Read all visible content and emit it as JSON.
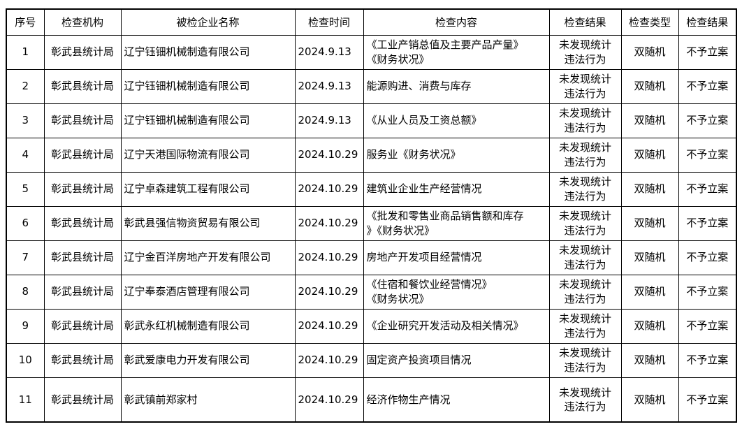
{
  "table": {
    "columns": [
      {
        "label": "序号"
      },
      {
        "label": "检查机构"
      },
      {
        "label": "被检企业名称"
      },
      {
        "label": "检查时间"
      },
      {
        "label": "检查内容"
      },
      {
        "label": "检查结果"
      },
      {
        "label": "检查类型"
      },
      {
        "label": "检查结果"
      }
    ],
    "rows": [
      [
        "1",
        "彰武县统计局",
        "辽宁钰钿机械制造有限公司",
        "2024.9.13",
        "《工业产销总值及主要产品产量》\n《财务状况》",
        "未发现统计\n违法行为",
        "双随机",
        "不予立案"
      ],
      [
        "2",
        "彰武县统计局",
        "辽宁钰钿机械制造有限公司",
        "2024.9.13",
        "能源购进、消费与库存",
        "未发现统计\n违法行为",
        "双随机",
        "不予立案"
      ],
      [
        "3",
        "彰武县统计局",
        "辽宁钰钿机械制造有限公司",
        "2024.9.13",
        "《从业人员及工资总额》",
        "未发现统计\n违法行为",
        "双随机",
        "不予立案"
      ],
      [
        "4",
        "彰武县统计局",
        "辽宁天港国际物流有限公司",
        "2024.10.29",
        "服务业《财务状况》",
        "未发现统计\n违法行为",
        "双随机",
        "不予立案"
      ],
      [
        "5",
        "彰武县统计局",
        "辽宁卓森建筑工程有限公司",
        "2024.10.29",
        "建筑业企业生产经营情况",
        "未发现统计\n违法行为",
        "双随机",
        "不予立案"
      ],
      [
        "6",
        "彰武县统计局",
        "彰武县强信物资贸易有限公司",
        "2024.10.29",
        "《批发和零售业商品销售额和库存\n》《财务状况》",
        "未发现统计\n违法行为",
        "双随机",
        "不予立案"
      ],
      [
        "7",
        "彰武县统计局",
        "辽宁金百洋房地产开发有限公司",
        "2024.10.29",
        "房地产开发项目经营情况",
        "未发现统计\n违法行为",
        "双随机",
        "不予立案"
      ],
      [
        "8",
        "彰武县统计局",
        "辽宁奉泰酒店管理有限公司",
        "2024.10.29",
        "《住宿和餐饮业经营情况》\n《财务状况》",
        "未发现统计\n违法行为",
        "双随机",
        "不予立案"
      ],
      [
        "9",
        "彰武县统计局",
        "彰武永红机械制造有限公司",
        "2024.10.29",
        "《企业研究开发活动及相关情况》",
        "未发现统计\n违法行为",
        "双随机",
        "不予立案"
      ],
      [
        "10",
        "彰武县统计局",
        "彰武爱康电力开发有限公司",
        "2024.10.29",
        "固定资产投资项目情况",
        "未发现统计\n违法行为",
        "双随机",
        "不予立案"
      ],
      [
        "11",
        "彰武县统计局",
        "彰武镇前郑家村",
        "2024.10.29",
        "经济作物生产情况",
        "未发现统计\n违法行为",
        "双随机",
        "不予立案"
      ]
    ]
  }
}
